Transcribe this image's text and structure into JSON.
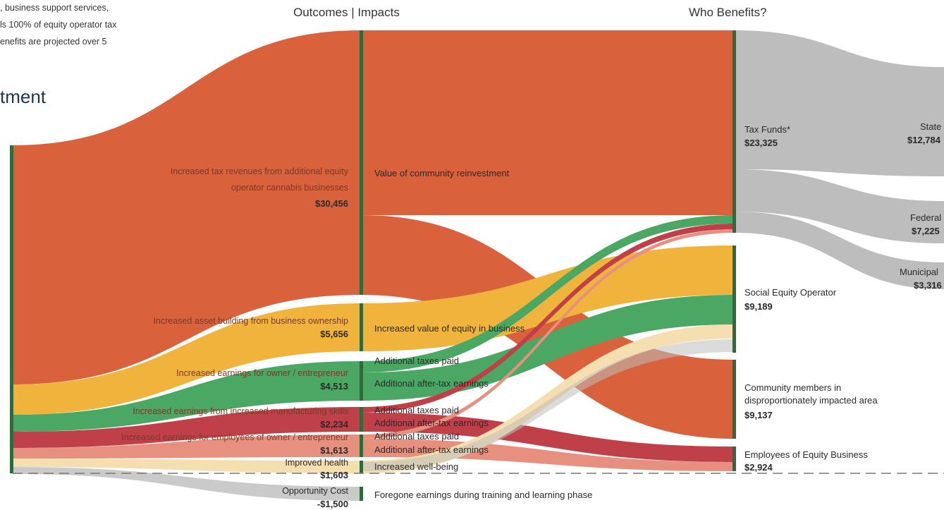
{
  "intro_lines": [
    ", business support services,",
    "ls 100% of equity operator tax",
    "enefits are projected over 5"
  ],
  "heading_fragment": "tment",
  "chart_data": {
    "type": "sankey",
    "column_headers": [
      "Outcomes | Impacts",
      "Who Benefits?"
    ],
    "colors": {
      "orange": "#d9623c",
      "yellow": "#f0b43c",
      "green": "#4aa864",
      "red": "#c0404a",
      "pink": "#e89080",
      "beige": "#f5dfb0",
      "gray": "#bdbdbd",
      "bar": "#2f6a3a"
    },
    "sources": [
      {
        "id": "tax",
        "label_lines": [
          "Increased tax revenues from additional equity",
          "operator cannabis businesses"
        ],
        "value": "$30,456",
        "amount": 30456,
        "color": "orange"
      },
      {
        "id": "asset",
        "label_lines": [
          "Increased asset building from business ownership"
        ],
        "value": "$5,656",
        "amount": 5656,
        "color": "yellow"
      },
      {
        "id": "owner",
        "label_lines": [
          "Increased earnings for owner / entrepreneur"
        ],
        "value": "$4,513",
        "amount": 4513,
        "color": "green"
      },
      {
        "id": "mfg",
        "label_lines": [
          "Increased earnings from increased manufacturing skills"
        ],
        "value": "$2,234",
        "amount": 2234,
        "color": "red"
      },
      {
        "id": "emp",
        "label_lines": [
          "Increased earnings for employees of owner / entrepreneur"
        ],
        "value": "$1,613",
        "amount": 1613,
        "color": "pink"
      },
      {
        "id": "health",
        "label_lines": [
          "Improved health"
        ],
        "value": "$1,603",
        "amount": 1603,
        "color": "beige"
      },
      {
        "id": "opp",
        "label_lines": [
          "Opportunity Cost"
        ],
        "value": "-$1,500",
        "amount": -1500,
        "color": "gray"
      }
    ],
    "outcomes": [
      {
        "id": "o_reinvest",
        "label": "Value of community reinvestment"
      },
      {
        "id": "o_equity",
        "label": "Increased value of equity in business"
      },
      {
        "id": "o_tax1",
        "label": "Additional taxes paid"
      },
      {
        "id": "o_after1",
        "label": "Additional after-tax earnings"
      },
      {
        "id": "o_tax2",
        "label": "Additional taxes paid"
      },
      {
        "id": "o_after2",
        "label": "Additional after-tax earnings"
      },
      {
        "id": "o_tax3",
        "label": "Additional taxes paid"
      },
      {
        "id": "o_after3",
        "label": "Additional after-tax earnings"
      },
      {
        "id": "o_well",
        "label": "Increased well-being"
      },
      {
        "id": "o_fore",
        "label": "Foregone earnings during training and learning phase"
      }
    ],
    "beneficiaries": [
      {
        "id": "b_tax",
        "label_lines": [
          "Tax Funds*"
        ],
        "value": "$23,325",
        "amount": 23325
      },
      {
        "id": "b_seo",
        "label_lines": [
          "Social Equity Operator"
        ],
        "value": "$9,189",
        "amount": 9189
      },
      {
        "id": "b_comm",
        "label_lines": [
          "Community members in",
          "disproportionately impacted area"
        ],
        "value": "$9,137",
        "amount": 9137
      },
      {
        "id": "b_emp",
        "label_lines": [
          "Employees of Equity Business"
        ],
        "value": "$2,924",
        "amount": 2924
      }
    ],
    "tax_split": [
      {
        "label": "State",
        "value": "$12,784",
        "amount": 12784
      },
      {
        "label": "Federal",
        "value": "$7,225",
        "amount": 7225
      },
      {
        "label": "Municipal",
        "value": "$3,316",
        "amount": 3316
      }
    ]
  }
}
